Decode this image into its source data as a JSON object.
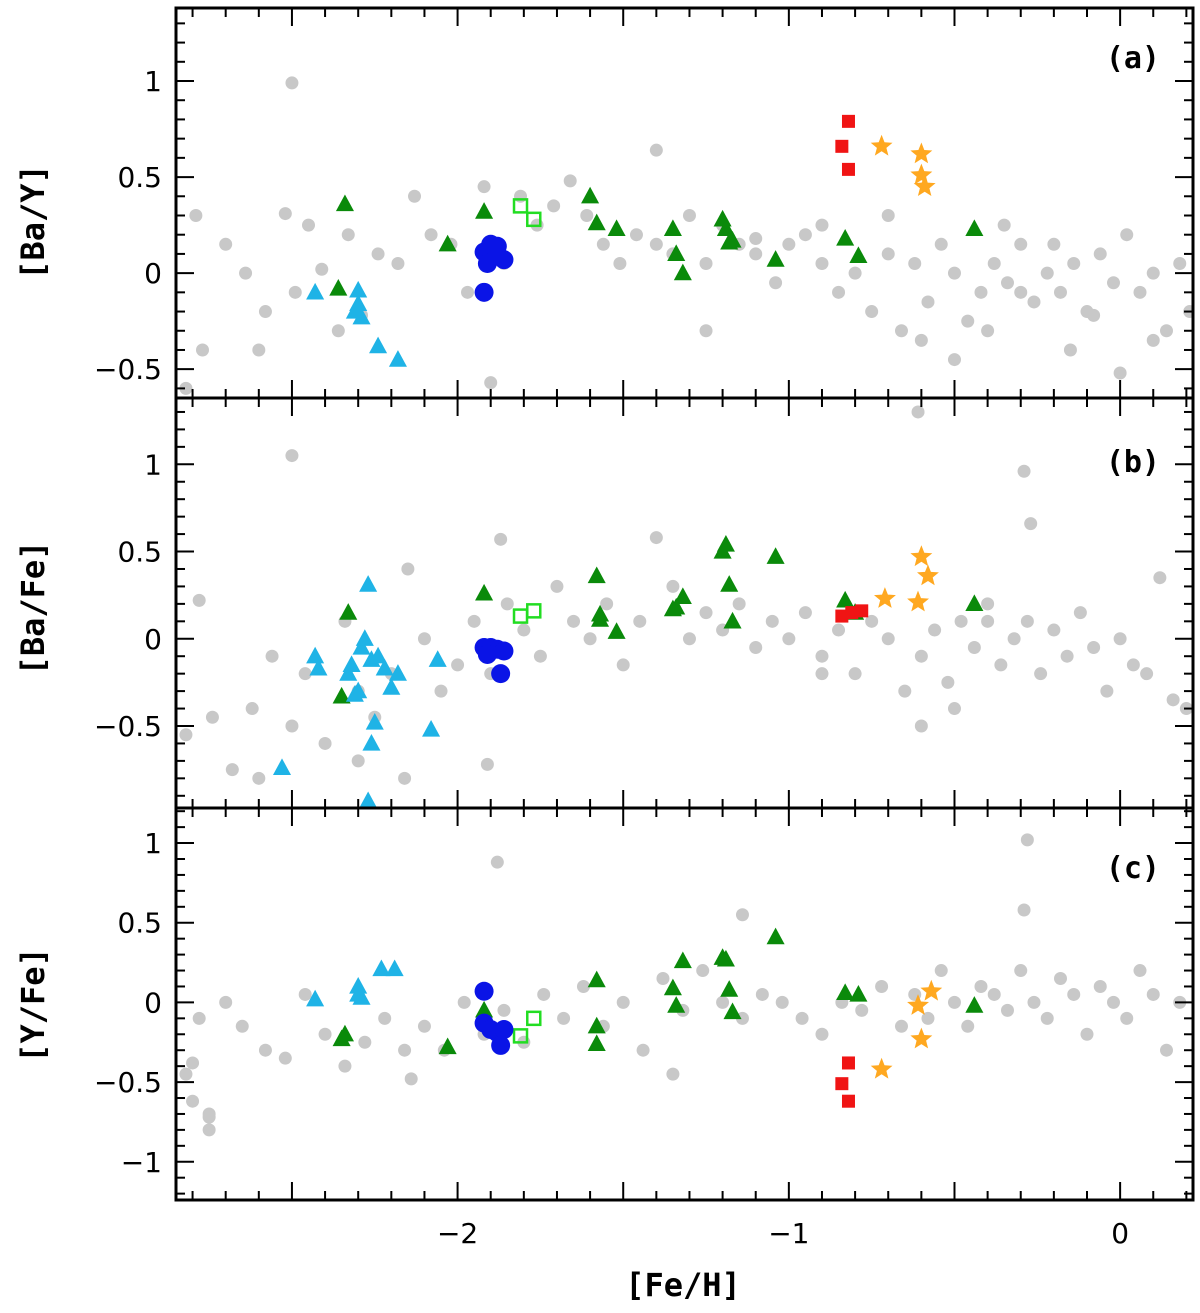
{
  "chart_data": {
    "type": "scatter",
    "xlabel": "[Fe/H]",
    "xlim": [
      -2.85,
      0.22
    ],
    "x_ticks": [
      -2,
      -1,
      0
    ],
    "x_tick_labels": [
      "−2",
      "−1",
      "0"
    ],
    "series_styles": {
      "background": {
        "color": "#c8c8c8",
        "marker": "circle"
      },
      "green_triangles": {
        "color": "#0a8a0a",
        "marker": "triangle"
      },
      "cyan_triangles": {
        "color": "#1fb3e6",
        "marker": "triangle"
      },
      "blue_circles": {
        "color": "#0a14e6",
        "marker": "circle-large"
      },
      "open_squares": {
        "color": "#22dd22",
        "marker": "open-square"
      },
      "red_squares": {
        "color": "#f01414",
        "marker": "square"
      },
      "orange_stars": {
        "color": "#ffa820",
        "marker": "star"
      }
    },
    "panels": [
      {
        "tag": "(a)",
        "ylabel": "[Ba/Y]",
        "ylim": [
          -0.65,
          1.38
        ],
        "y_ticks": [
          -0.5,
          0,
          0.5,
          1
        ],
        "y_tick_labels": [
          "−0.5",
          "0",
          "0.5",
          "1"
        ],
        "series": {
          "background": {
            "x": [
              -2.82,
              -2.79,
              -2.77,
              -2.7,
              -2.64,
              -2.58,
              -2.52,
              -2.49,
              -2.45,
              -2.41,
              -2.36,
              -2.33,
              -2.29,
              -2.24,
              -2.18,
              -2.13,
              -2.08,
              -2.02,
              -1.97,
              -1.92,
              -1.86,
              -1.81,
              -1.76,
              -1.71,
              -1.66,
              -1.61,
              -1.56,
              -1.51,
              -1.46,
              -1.4,
              -1.35,
              -1.3,
              -1.25,
              -1.2,
              -1.15,
              -1.1,
              -1.04,
              -1.0,
              -0.95,
              -0.9,
              -0.85,
              -0.8,
              -0.75,
              -0.7,
              -0.66,
              -0.62,
              -0.58,
              -0.54,
              -0.5,
              -0.46,
              -0.42,
              -0.38,
              -0.34,
              -0.3,
              -0.26,
              -0.22,
              -0.18,
              -0.14,
              -0.1,
              -0.06,
              -0.02,
              0.02,
              0.06,
              0.1,
              0.14,
              0.18,
              0.21,
              -2.5,
              -1.9,
              -1.4,
              -1.1,
              -0.6,
              -0.3,
              -0.08,
              0.1,
              -0.5,
              -0.4,
              -0.7,
              -0.9,
              -2.6,
              -1.25,
              -0.2,
              -0.15,
              -0.35,
              0.0
            ],
            "y": [
              -0.6,
              0.3,
              -0.4,
              0.15,
              0.0,
              -0.2,
              0.31,
              -0.1,
              0.25,
              0.02,
              -0.3,
              0.2,
              -0.22,
              0.1,
              0.05,
              0.4,
              0.2,
              0.15,
              -0.1,
              0.45,
              0.05,
              0.4,
              0.25,
              0.35,
              0.48,
              0.3,
              0.15,
              0.05,
              0.2,
              0.15,
              0.1,
              0.3,
              0.05,
              0.25,
              0.15,
              0.1,
              -0.05,
              0.15,
              0.2,
              0.05,
              -0.1,
              0.0,
              -0.2,
              0.1,
              -0.3,
              0.05,
              -0.15,
              0.15,
              0.0,
              -0.25,
              -0.1,
              0.05,
              -0.05,
              0.15,
              -0.15,
              0.0,
              -0.1,
              0.05,
              -0.2,
              0.1,
              -0.05,
              0.2,
              -0.1,
              0.0,
              -0.3,
              0.05,
              -0.2,
              0.99,
              -0.57,
              0.64,
              0.18,
              -0.35,
              -0.1,
              -0.22,
              -0.35,
              -0.45,
              -0.3,
              0.3,
              0.25,
              -0.4,
              -0.3,
              0.15,
              -0.4,
              0.25,
              -0.52
            ]
          },
          "green_triangles": {
            "x": [
              -2.34,
              -2.36,
              -2.03,
              -1.92,
              -1.6,
              -1.58,
              -1.52,
              -1.35,
              -1.34,
              -1.32,
              -1.2,
              -1.19,
              -1.18,
              -1.17,
              -1.04,
              -0.83,
              -0.79,
              -0.44
            ],
            "y": [
              0.36,
              -0.08,
              0.15,
              0.32,
              0.4,
              0.26,
              0.23,
              0.23,
              0.1,
              0.0,
              0.28,
              0.23,
              0.16,
              0.17,
              0.07,
              0.18,
              0.09,
              0.23
            ]
          },
          "cyan_triangles": {
            "x": [
              -2.43,
              -2.3,
              -2.31,
              -2.3,
              -2.29,
              -2.24,
              -2.18
            ],
            "y": [
              -0.1,
              -0.09,
              -0.2,
              -0.16,
              -0.23,
              -0.38,
              -0.45
            ]
          },
          "blue_circles": {
            "x": [
              -1.92,
              -1.9,
              -1.88,
              -1.86,
              -1.91,
              -1.88,
              -1.92
            ],
            "y": [
              0.11,
              0.15,
              0.14,
              0.07,
              0.05,
              0.1,
              -0.1
            ]
          },
          "open_squares": {
            "x": [
              -1.81,
              -1.77
            ],
            "y": [
              0.35,
              0.28
            ]
          },
          "red_squares": {
            "x": [
              -0.82,
              -0.84,
              -0.82
            ],
            "y": [
              0.79,
              0.66,
              0.54
            ]
          },
          "orange_stars": {
            "x": [
              -0.72,
              -0.6,
              -0.6,
              -0.59
            ],
            "y": [
              0.66,
              0.62,
              0.51,
              0.45
            ]
          }
        }
      },
      {
        "tag": "(b)",
        "ylabel": "[Ba/Fe]",
        "ylim": [
          -0.97,
          1.38
        ],
        "y_ticks": [
          -0.5,
          0,
          0.5,
          1
        ],
        "y_tick_labels": [
          "−0.5",
          "0",
          "0.5",
          "1"
        ],
        "series": {
          "background": {
            "x": [
              -2.82,
              -2.78,
              -2.74,
              -2.68,
              -2.62,
              -2.56,
              -2.5,
              -2.46,
              -2.4,
              -2.34,
              -2.3,
              -2.25,
              -2.2,
              -2.15,
              -2.1,
              -2.05,
              -2.0,
              -1.95,
              -1.9,
              -1.85,
              -1.8,
              -1.75,
              -1.7,
              -1.65,
              -1.6,
              -1.55,
              -1.5,
              -1.45,
              -1.4,
              -1.35,
              -1.3,
              -1.25,
              -1.2,
              -1.15,
              -1.1,
              -1.05,
              -1.0,
              -0.95,
              -0.9,
              -0.85,
              -0.8,
              -0.75,
              -0.7,
              -0.65,
              -0.6,
              -0.56,
              -0.52,
              -0.48,
              -0.44,
              -0.4,
              -0.36,
              -0.32,
              -0.28,
              -0.24,
              -0.2,
              -0.16,
              -0.12,
              -0.08,
              -0.04,
              0.0,
              0.04,
              0.08,
              0.12,
              0.16,
              0.2,
              -2.5,
              -1.91,
              -0.61,
              -0.29,
              -0.27,
              -1.87,
              -2.16,
              -0.6,
              -2.6,
              -2.3,
              -0.9,
              -0.5,
              -0.4
            ],
            "y": [
              -0.55,
              0.22,
              -0.45,
              -0.75,
              -0.4,
              -0.1,
              -0.5,
              -0.2,
              -0.6,
              0.1,
              -0.3,
              -0.45,
              -0.2,
              0.4,
              0.0,
              -0.3,
              -0.15,
              0.1,
              -0.2,
              0.2,
              0.05,
              -0.1,
              0.3,
              0.1,
              0.0,
              0.2,
              -0.15,
              0.1,
              0.58,
              0.3,
              0.0,
              0.15,
              0.05,
              0.2,
              -0.05,
              0.1,
              0.0,
              0.15,
              -0.1,
              0.05,
              -0.2,
              0.1,
              0.0,
              -0.3,
              -0.1,
              0.05,
              -0.25,
              0.1,
              -0.05,
              0.2,
              -0.15,
              0.0,
              0.1,
              -0.2,
              0.05,
              -0.1,
              0.15,
              -0.05,
              -0.3,
              0.0,
              -0.15,
              -0.2,
              0.35,
              -0.35,
              -0.4,
              1.05,
              -0.72,
              1.3,
              0.96,
              0.66,
              0.57,
              -0.8,
              -0.5,
              -0.8,
              -0.7,
              -0.2,
              -0.4,
              0.1
            ]
          },
          "green_triangles": {
            "x": [
              -2.35,
              -2.33,
              -1.92,
              -1.58,
              -1.57,
              -1.57,
              -1.52,
              -1.35,
              -1.34,
              -1.32,
              -1.2,
              -1.19,
              -1.18,
              -1.17,
              -1.04,
              -0.83,
              -0.8,
              -0.44
            ],
            "y": [
              -0.33,
              0.15,
              0.26,
              0.36,
              0.14,
              0.11,
              0.04,
              0.17,
              0.18,
              0.24,
              0.5,
              0.54,
              0.31,
              0.1,
              0.47,
              0.22,
              0.15,
              0.2
            ]
          },
          "cyan_triangles": {
            "x": [
              -2.43,
              -2.33,
              -2.3,
              -2.29,
              -2.28,
              -2.26,
              -2.24,
              -2.22,
              -2.2,
              -2.18,
              -2.06,
              -2.08,
              -2.26,
              -2.31,
              -2.27,
              -2.53,
              -2.25,
              -2.27,
              -2.42,
              -2.32
            ],
            "y": [
              -0.1,
              -0.2,
              -0.3,
              -0.05,
              0.0,
              -0.12,
              -0.1,
              -0.17,
              -0.28,
              -0.2,
              -0.12,
              -0.52,
              -0.6,
              -0.32,
              0.31,
              -0.74,
              -0.48,
              -0.93,
              -0.17,
              -0.15
            ]
          },
          "blue_circles": {
            "x": [
              -1.92,
              -1.9,
              -1.88,
              -1.86,
              -1.91,
              -1.87
            ],
            "y": [
              -0.05,
              -0.05,
              -0.06,
              -0.07,
              -0.09,
              -0.2
            ]
          },
          "open_squares": {
            "x": [
              -1.81,
              -1.77
            ],
            "y": [
              0.13,
              0.16
            ]
          },
          "red_squares": {
            "x": [
              -0.84,
              -0.81,
              -0.78
            ],
            "y": [
              0.13,
              0.15,
              0.16
            ]
          },
          "orange_stars": {
            "x": [
              -0.6,
              -0.58,
              -0.71,
              -0.61
            ],
            "y": [
              0.47,
              0.36,
              0.23,
              0.21
            ]
          }
        }
      },
      {
        "tag": "(c)",
        "ylabel": "[Y/Fe]",
        "ylim": [
          -1.24,
          1.22
        ],
        "y_ticks": [
          -1,
          -0.5,
          0,
          0.5,
          1
        ],
        "y_tick_labels": [
          "−1",
          "−0.5",
          "0",
          "0.5",
          "1"
        ],
        "series": {
          "background": {
            "x": [
              -2.82,
              -2.8,
              -2.78,
              -2.75,
              -2.7,
              -2.65,
              -2.58,
              -2.52,
              -2.46,
              -2.4,
              -2.34,
              -2.28,
              -2.22,
              -2.16,
              -2.1,
              -2.04,
              -1.98,
              -1.92,
              -1.86,
              -1.8,
              -1.74,
              -1.68,
              -1.62,
              -1.56,
              -1.5,
              -1.44,
              -1.38,
              -1.32,
              -1.26,
              -1.2,
              -1.14,
              -1.08,
              -1.02,
              -0.96,
              -0.9,
              -0.84,
              -0.78,
              -0.72,
              -0.66,
              -0.62,
              -0.58,
              -0.54,
              -0.5,
              -0.46,
              -0.42,
              -0.38,
              -0.34,
              -0.3,
              -0.26,
              -0.22,
              -0.18,
              -0.14,
              -0.1,
              -0.06,
              -0.02,
              0.02,
              0.06,
              0.1,
              0.14,
              0.18,
              -1.88,
              -1.14,
              -0.28,
              -0.29,
              -2.75,
              -2.75,
              -2.8,
              -2.14,
              -1.35
            ],
            "y": [
              -0.45,
              -0.62,
              -0.1,
              -0.72,
              0.0,
              -0.15,
              -0.3,
              -0.35,
              0.05,
              -0.2,
              -0.4,
              -0.25,
              -0.1,
              -0.3,
              -0.15,
              -0.3,
              0.0,
              -0.2,
              -0.05,
              -0.25,
              0.05,
              -0.1,
              0.1,
              -0.15,
              0.0,
              -0.3,
              0.15,
              -0.05,
              0.2,
              0.0,
              -0.1,
              0.05,
              0.0,
              -0.1,
              -0.2,
              0.0,
              -0.05,
              0.1,
              -0.15,
              0.05,
              -0.1,
              0.2,
              0.0,
              -0.15,
              0.1,
              0.05,
              -0.05,
              0.2,
              0.0,
              -0.1,
              0.15,
              0.05,
              -0.2,
              0.1,
              0.0,
              -0.1,
              0.2,
              0.05,
              -0.3,
              0.0,
              0.88,
              0.55,
              1.02,
              0.58,
              -0.8,
              -0.7,
              -0.38,
              -0.48,
              -0.45
            ]
          },
          "green_triangles": {
            "x": [
              -2.35,
              -2.34,
              -2.03,
              -1.92,
              -1.58,
              -1.58,
              -1.35,
              -1.34,
              -1.32,
              -1.2,
              -1.19,
              -1.18,
              -1.17,
              -1.04,
              -0.83,
              -0.79,
              -0.44,
              -1.58
            ],
            "y": [
              -0.23,
              -0.2,
              -0.28,
              -0.05,
              0.14,
              -0.15,
              0.09,
              -0.02,
              0.26,
              0.28,
              0.27,
              0.08,
              -0.06,
              0.41,
              0.06,
              0.05,
              -0.02,
              -0.26
            ]
          },
          "cyan_triangles": {
            "x": [
              -2.43,
              -2.3,
              -2.3,
              -2.29,
              -2.23,
              -2.19
            ],
            "y": [
              0.02,
              0.1,
              0.05,
              0.03,
              0.21,
              0.21
            ]
          },
          "blue_circles": {
            "x": [
              -1.92,
              -1.92,
              -1.9,
              -1.88,
              -1.86,
              -1.87
            ],
            "y": [
              0.07,
              -0.13,
              -0.17,
              -0.19,
              -0.17,
              -0.27
            ]
          },
          "open_squares": {
            "x": [
              -1.81,
              -1.77
            ],
            "y": [
              -0.21,
              -0.1
            ]
          },
          "red_squares": {
            "x": [
              -0.82,
              -0.84,
              -0.82
            ],
            "y": [
              -0.38,
              -0.51,
              -0.62
            ]
          },
          "orange_stars": {
            "x": [
              -0.57,
              -0.61,
              -0.6,
              -0.72
            ],
            "y": [
              0.07,
              -0.02,
              -0.23,
              -0.42
            ]
          }
        }
      }
    ]
  }
}
